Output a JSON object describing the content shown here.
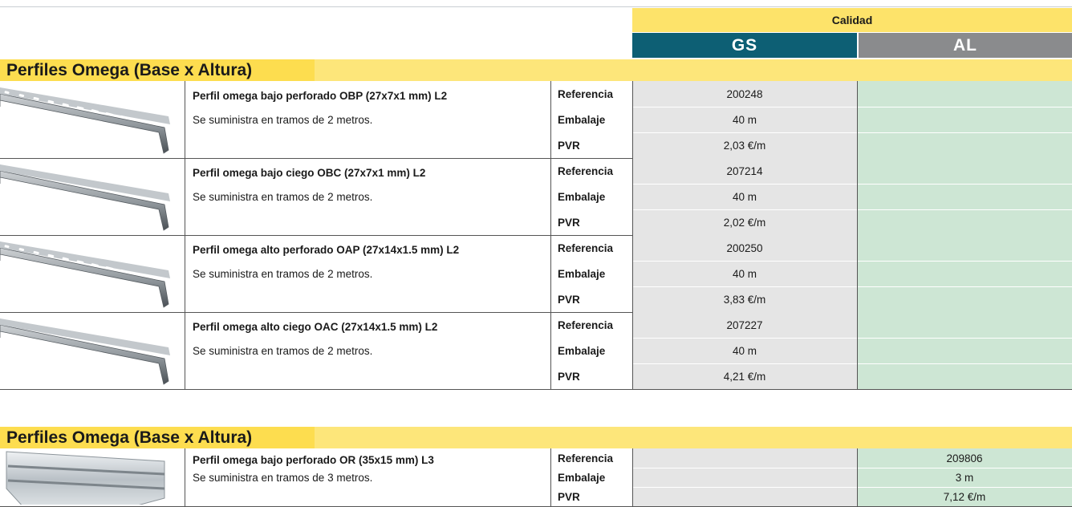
{
  "header": {
    "group": "Calidad",
    "columns": [
      "GS",
      "AL"
    ]
  },
  "sections": [
    {
      "title": "Perfiles Omega (Base x Altura)",
      "products": [
        {
          "name": "Perfil omega bajo perforado OBP (27x7x1 mm) L2",
          "note": "Se suministra en tramos de 2 metros.",
          "rows": [
            {
              "label": "Referencia",
              "gs": "200248"
            },
            {
              "label": "Embalaje",
              "gs": "40 m"
            },
            {
              "label": "PVR",
              "gs": "2,03 €/m"
            }
          ]
        },
        {
          "name": "Perfil omega bajo ciego OBC (27x7x1 mm) L2",
          "note": "Se suministra en tramos de 2 metros.",
          "rows": [
            {
              "label": "Referencia",
              "gs": "207214"
            },
            {
              "label": "Embalaje",
              "gs": "40 m"
            },
            {
              "label": "PVR",
              "gs": "2,02 €/m"
            }
          ]
        },
        {
          "name": "Perfil omega alto perforado OAP (27x14x1.5 mm) L2",
          "note": "Se suministra en tramos de 2 metros.",
          "rows": [
            {
              "label": "Referencia",
              "gs": "200250"
            },
            {
              "label": "Embalaje",
              "gs": "40 m"
            },
            {
              "label": "PVR",
              "gs": "3,83 €/m"
            }
          ]
        },
        {
          "name": "Perfil omega alto ciego OAC (27x14x1.5 mm) L2",
          "note": "Se suministra en tramos de 2 metros.",
          "rows": [
            {
              "label": "Referencia",
              "gs": "207227"
            },
            {
              "label": "Embalaje",
              "gs": "40 m"
            },
            {
              "label": "PVR",
              "gs": "4,21 €/m"
            }
          ]
        }
      ]
    },
    {
      "title": "Perfiles Omega (Base x Altura)",
      "products": [
        {
          "name": "Perfil omega bajo perforado OR (35x15 mm) L3",
          "note": "Se suministra en tramos de 3 metros.",
          "rows": [
            {
              "label": "Referencia",
              "al": "209806"
            },
            {
              "label": "Embalaje",
              "al": "3 m"
            },
            {
              "label": "PVR",
              "al": "7,12 €/m"
            }
          ]
        }
      ]
    }
  ]
}
